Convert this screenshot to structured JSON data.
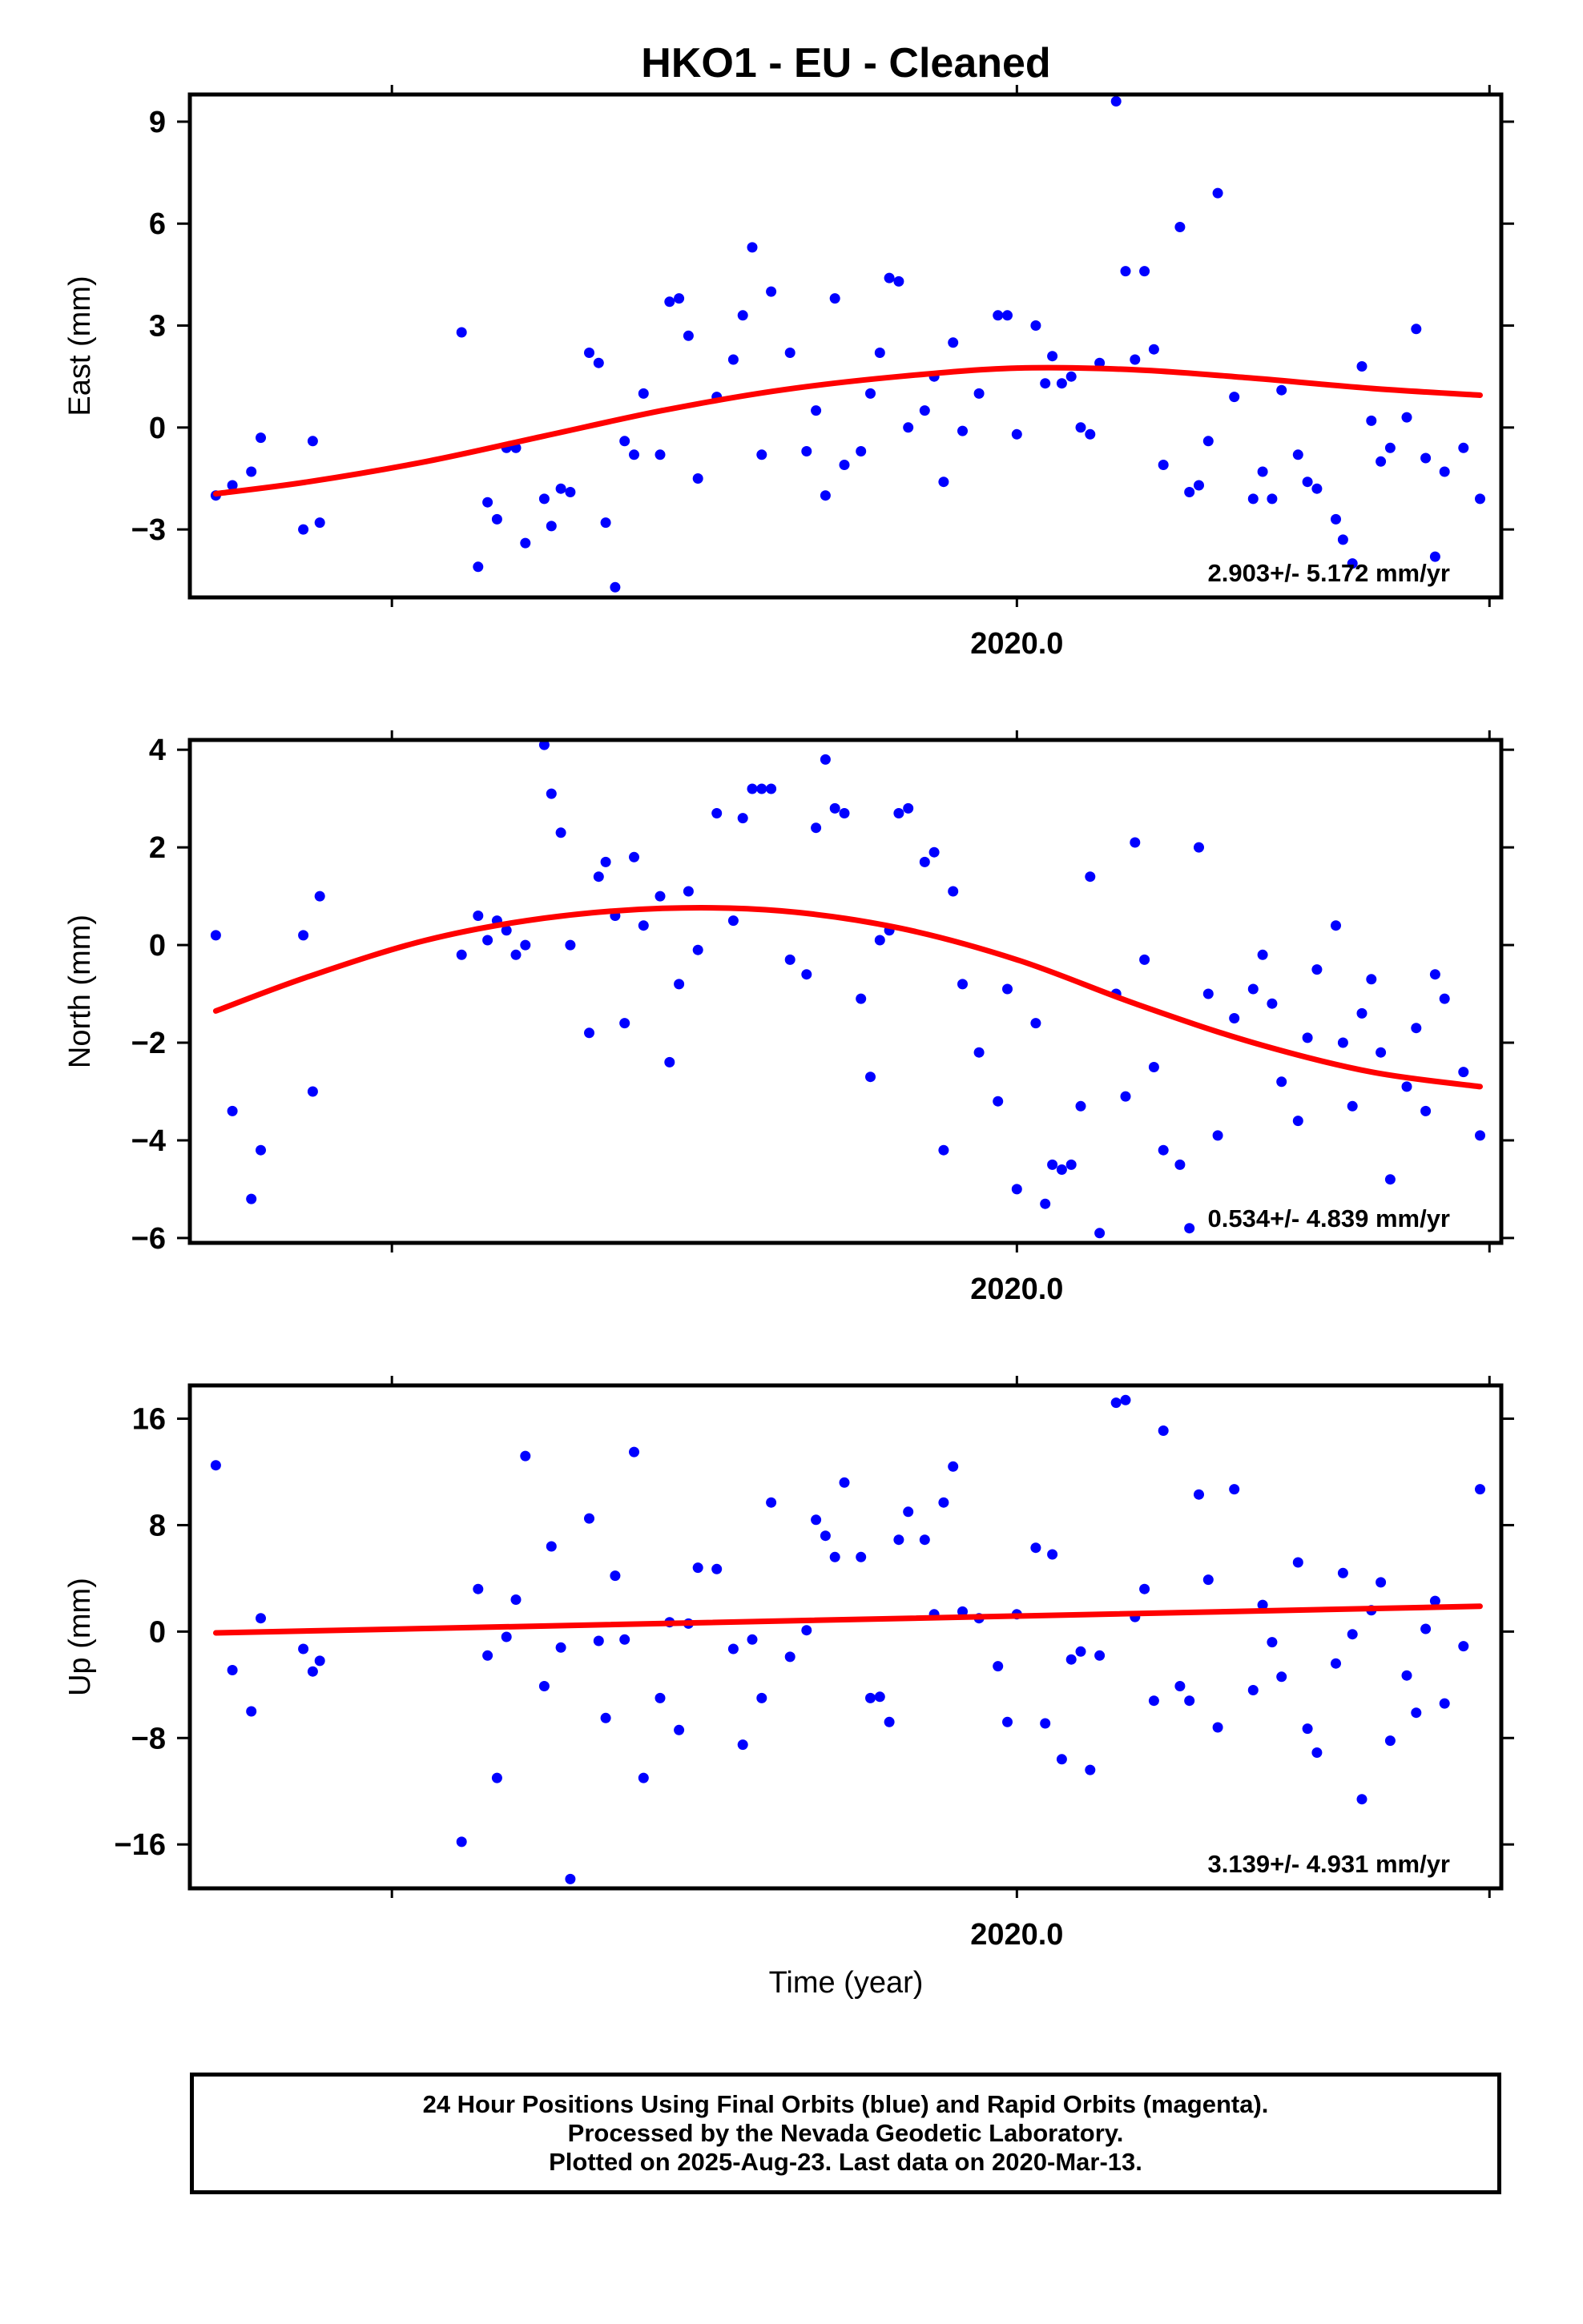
{
  "title": "HKO1  - EU - Cleaned",
  "xlabel": "Time (year)",
  "footer": {
    "line1": "24 Hour Positions Using Final Orbits (blue) and Rapid Orbits (magenta).",
    "line2": "Processed by the Nevada Geodetic Laboratory.",
    "line3": "Plotted on 2025-Aug-23. Last data on 2020-Mar-13."
  },
  "colors": {
    "points": "#0000ff",
    "fit": "#ff0000",
    "frame": "#000000"
  },
  "chart_data": [
    {
      "type": "scatter",
      "ylabel": "East (mm)",
      "xlim": [
        2019.65,
        2020.205
      ],
      "ylim": [
        -5,
        9.8
      ],
      "yticks": [
        -3,
        0,
        3,
        6,
        9
      ],
      "xtick_labels": [
        "2020.0"
      ],
      "rate_text": "2.903+/- 5.172 mm/yr",
      "points": {
        "name": "Final Orbits",
        "x": [
          2019.661,
          2019.668,
          2019.676,
          2019.68,
          2019.698,
          2019.702,
          2019.705,
          2019.765,
          2019.772,
          2019.776,
          2019.78,
          2019.784,
          2019.788,
          2019.792,
          2019.8,
          2019.803,
          2019.807,
          2019.811,
          2019.819,
          2019.823,
          2019.826,
          2019.83,
          2019.834,
          2019.838,
          2019.842,
          2019.849,
          2019.853,
          2019.857,
          2019.861,
          2019.865,
          2019.873,
          2019.88,
          2019.884,
          2019.888,
          2019.892,
          2019.896,
          2019.904,
          2019.911,
          2019.915,
          2019.919,
          2019.923,
          2019.927,
          2019.934,
          2019.938,
          2019.942,
          2019.946,
          2019.95,
          2019.954,
          2019.961,
          2019.965,
          2019.969,
          2019.973,
          2019.977,
          2019.984,
          2019.992,
          2019.996,
          2020.0,
          2020.008,
          2020.012,
          2020.015,
          2020.019,
          2020.023,
          2020.027,
          2020.031,
          2020.035,
          2020.042,
          2020.046,
          2020.05,
          2020.054,
          2020.058,
          2020.062,
          2020.069,
          2020.073,
          2020.077,
          2020.081,
          2020.085,
          2020.092,
          2020.1,
          2020.104,
          2020.108,
          2020.112,
          2020.119,
          2020.123,
          2020.127,
          2020.135,
          2020.138,
          2020.142,
          2020.146,
          2020.15,
          2020.154,
          2020.158,
          2020.165,
          2020.169,
          2020.173,
          2020.177,
          2020.181,
          2020.189,
          2020.196
        ],
        "y": [
          -2.0,
          -1.7,
          -1.3,
          -0.3,
          -3.0,
          -0.4,
          -2.8,
          2.8,
          -4.1,
          -2.2,
          -2.7,
          -0.6,
          -0.6,
          -3.4,
          -2.1,
          -2.9,
          -1.8,
          -1.9,
          2.2,
          1.9,
          -2.8,
          -4.7,
          -0.4,
          -0.8,
          1.0,
          -0.8,
          3.7,
          3.8,
          2.7,
          -1.5,
          0.9,
          2.0,
          3.3,
          5.3,
          -0.8,
          4.0,
          2.2,
          -0.7,
          0.5,
          -2.0,
          3.8,
          -1.1,
          -0.7,
          1.0,
          2.2,
          4.4,
          4.3,
          0.0,
          0.5,
          1.5,
          -1.6,
          2.5,
          -0.1,
          1.0,
          3.3,
          3.3,
          -0.2,
          3.0,
          1.3,
          2.1,
          1.3,
          1.5,
          0.0,
          -0.2,
          1.9,
          9.6,
          4.6,
          2.0,
          4.6,
          2.3,
          -1.1,
          5.9,
          -1.9,
          -1.7,
          -0.4,
          6.9,
          0.9,
          -2.1,
          -1.3,
          -2.1,
          1.1,
          -0.8,
          -1.6,
          -1.8,
          -2.7,
          -3.3,
          -4.0,
          1.8,
          0.2,
          -1.0,
          -0.6,
          0.3,
          2.9,
          -0.9,
          -3.8,
          -1.3,
          -0.6,
          -2.1
        ]
      },
      "fit": {
        "name": "Model fit",
        "x": [
          2019.661,
          2019.7,
          2019.75,
          2019.8,
          2019.85,
          2019.9,
          2019.95,
          2020.0,
          2020.05,
          2020.1,
          2020.15,
          2020.196
        ],
        "y": [
          -1.95,
          -1.6,
          -1.0,
          -0.25,
          0.5,
          1.1,
          1.5,
          1.75,
          1.7,
          1.45,
          1.15,
          0.95
        ]
      }
    },
    {
      "type": "scatter",
      "ylabel": "North (mm)",
      "xlim": [
        2019.65,
        2020.205
      ],
      "ylim": [
        -6.1,
        4.2
      ],
      "yticks": [
        -6,
        -4,
        -2,
        0,
        2,
        4
      ],
      "xtick_labels": [
        "2020.0"
      ],
      "rate_text": "0.534+/- 4.839 mm/yr",
      "points": {
        "name": "Final Orbits",
        "x": [
          2019.661,
          2019.668,
          2019.676,
          2019.68,
          2019.698,
          2019.702,
          2019.705,
          2019.765,
          2019.772,
          2019.776,
          2019.78,
          2019.784,
          2019.788,
          2019.792,
          2019.8,
          2019.803,
          2019.807,
          2019.811,
          2019.819,
          2019.823,
          2019.826,
          2019.83,
          2019.834,
          2019.838,
          2019.842,
          2019.849,
          2019.853,
          2019.857,
          2019.861,
          2019.865,
          2019.873,
          2019.88,
          2019.884,
          2019.888,
          2019.892,
          2019.896,
          2019.904,
          2019.911,
          2019.915,
          2019.919,
          2019.923,
          2019.927,
          2019.934,
          2019.938,
          2019.942,
          2019.946,
          2019.95,
          2019.954,
          2019.961,
          2019.965,
          2019.969,
          2019.973,
          2019.977,
          2019.984,
          2019.992,
          2019.996,
          2020.0,
          2020.008,
          2020.012,
          2020.015,
          2020.019,
          2020.023,
          2020.027,
          2020.031,
          2020.035,
          2020.042,
          2020.046,
          2020.05,
          2020.054,
          2020.058,
          2020.062,
          2020.069,
          2020.073,
          2020.077,
          2020.081,
          2020.085,
          2020.092,
          2020.1,
          2020.104,
          2020.108,
          2020.112,
          2020.119,
          2020.123,
          2020.127,
          2020.135,
          2020.138,
          2020.142,
          2020.146,
          2020.15,
          2020.154,
          2020.158,
          2020.165,
          2020.169,
          2020.173,
          2020.177,
          2020.181,
          2020.189,
          2020.196
        ],
        "y": [
          0.2,
          -3.4,
          -5.2,
          -4.2,
          0.2,
          -3.0,
          1.0,
          -0.2,
          0.6,
          0.1,
          0.5,
          0.3,
          -0.2,
          0.0,
          4.1,
          3.1,
          2.3,
          0.0,
          -1.8,
          1.4,
          1.7,
          0.6,
          -1.6,
          1.8,
          0.4,
          1.0,
          -2.4,
          -0.8,
          1.1,
          -0.1,
          2.7,
          0.5,
          2.6,
          3.2,
          3.2,
          3.2,
          -0.3,
          -0.6,
          2.4,
          3.8,
          2.8,
          2.7,
          -1.1,
          -2.7,
          0.1,
          0.3,
          2.7,
          2.8,
          1.7,
          1.9,
          -4.2,
          1.1,
          -0.8,
          -2.2,
          -3.2,
          -0.9,
          -5.0,
          -1.6,
          -5.3,
          -4.5,
          -4.6,
          -4.5,
          -3.3,
          1.4,
          -5.9,
          -1.0,
          -3.1,
          2.1,
          -0.3,
          -2.5,
          -4.2,
          -4.5,
          -5.8,
          2.0,
          -1.0,
          -3.9,
          -1.5,
          -0.9,
          -0.2,
          -1.2,
          -2.8,
          -3.6,
          -1.9,
          -0.5,
          0.4,
          -2.0,
          -3.3,
          -1.4,
          -0.7,
          -2.2,
          -4.8,
          -2.9,
          -1.7,
          -3.4,
          -0.6,
          -1.1,
          -2.6,
          -3.9
        ]
      },
      "fit": {
        "name": "Model fit",
        "x": [
          2019.661,
          2019.7,
          2019.75,
          2019.8,
          2019.85,
          2019.9,
          2019.95,
          2020.0,
          2020.05,
          2020.1,
          2020.15,
          2020.196
        ],
        "y": [
          -1.35,
          -0.65,
          0.1,
          0.55,
          0.75,
          0.7,
          0.35,
          -0.3,
          -1.2,
          -2.0,
          -2.6,
          -2.9
        ]
      }
    },
    {
      "type": "scatter",
      "ylabel": "Up (mm)",
      "xlim": [
        2019.65,
        2020.205
      ],
      "ylim": [
        -19.3,
        18.5
      ],
      "yticks": [
        -16,
        -8,
        0,
        8,
        16
      ],
      "xtick_labels": [
        "2020.0"
      ],
      "rate_text": "3.139+/- 4.931 mm/yr",
      "points": {
        "name": "Final Orbits",
        "x": [
          2019.661,
          2019.668,
          2019.676,
          2019.68,
          2019.698,
          2019.702,
          2019.705,
          2019.765,
          2019.772,
          2019.776,
          2019.78,
          2019.784,
          2019.788,
          2019.792,
          2019.8,
          2019.803,
          2019.807,
          2019.811,
          2019.819,
          2019.823,
          2019.826,
          2019.83,
          2019.834,
          2019.838,
          2019.842,
          2019.849,
          2019.853,
          2019.857,
          2019.861,
          2019.865,
          2019.873,
          2019.88,
          2019.884,
          2019.888,
          2019.892,
          2019.896,
          2019.904,
          2019.911,
          2019.915,
          2019.919,
          2019.923,
          2019.927,
          2019.934,
          2019.938,
          2019.942,
          2019.946,
          2019.95,
          2019.954,
          2019.961,
          2019.965,
          2019.969,
          2019.973,
          2019.977,
          2019.984,
          2019.992,
          2019.996,
          2020.0,
          2020.008,
          2020.012,
          2020.015,
          2020.019,
          2020.023,
          2020.027,
          2020.031,
          2020.035,
          2020.042,
          2020.046,
          2020.05,
          2020.054,
          2020.058,
          2020.062,
          2020.069,
          2020.073,
          2020.077,
          2020.081,
          2020.085,
          2020.092,
          2020.1,
          2020.104,
          2020.108,
          2020.112,
          2020.119,
          2020.123,
          2020.127,
          2020.135,
          2020.138,
          2020.142,
          2020.146,
          2020.15,
          2020.154,
          2020.158,
          2020.165,
          2020.169,
          2020.173,
          2020.177,
          2020.181,
          2020.189,
          2020.196
        ],
        "y": [
          12.5,
          -2.9,
          -6.0,
          1.0,
          -1.3,
          -3.0,
          -2.2,
          -15.8,
          3.2,
          -1.8,
          -11.0,
          -0.4,
          2.4,
          13.2,
          -4.1,
          6.4,
          -1.2,
          -18.6,
          8.5,
          -0.7,
          -6.5,
          4.2,
          -0.6,
          13.5,
          -11.0,
          -5.0,
          0.7,
          -7.4,
          0.6,
          4.8,
          4.7,
          -1.3,
          -8.5,
          -0.6,
          -5.0,
          9.7,
          -1.9,
          0.1,
          8.4,
          7.2,
          5.6,
          11.2,
          5.6,
          -5.0,
          -4.9,
          -6.8,
          6.9,
          9.0,
          6.9,
          1.3,
          9.7,
          12.4,
          1.5,
          1.0,
          -2.6,
          -6.8,
          1.3,
          6.3,
          -6.9,
          5.8,
          -9.6,
          -2.1,
          -1.5,
          -10.4,
          -1.8,
          17.2,
          17.4,
          1.1,
          3.2,
          -5.2,
          15.1,
          -4.1,
          -5.2,
          10.3,
          3.9,
          -7.2,
          10.7,
          -4.4,
          2.0,
          -0.8,
          -3.4,
          5.2,
          -7.3,
          -9.1,
          -2.4,
          4.4,
          -0.2,
          -12.6,
          1.6,
          3.7,
          -8.2,
          -3.3,
          -6.1,
          0.2,
          2.3,
          -5.4,
          -1.1,
          10.7
        ]
      },
      "fit": {
        "name": "Model fit",
        "x": [
          2019.661,
          2020.196
        ],
        "y": [
          -0.1,
          1.9
        ]
      }
    }
  ]
}
